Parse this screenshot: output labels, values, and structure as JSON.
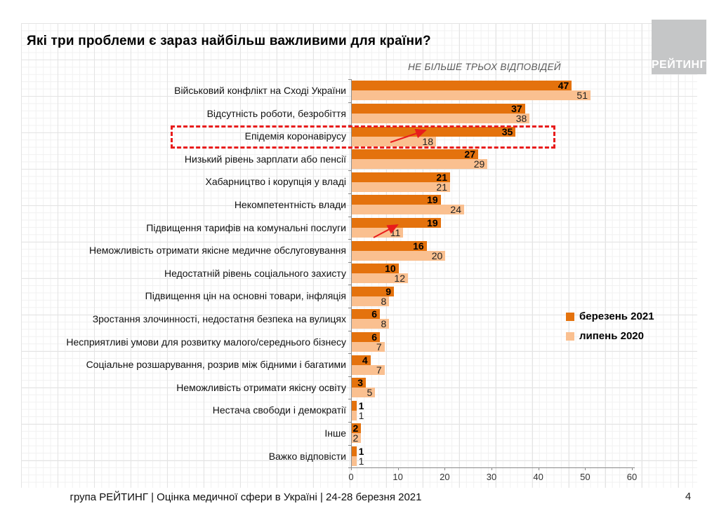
{
  "slide": {
    "title": "Які три проблеми є зараз найбільш важливими для країни?",
    "note": "НЕ БІЛЬШЕ ТРЬОХ ВІДПОВІДЕЙ",
    "logo_text": "РЕЙТИНГ",
    "footer": "група РЕЙТИНГ  |  Оцінка медичної сфери в Україні  | 24-28 березня 2021",
    "page_number": "4"
  },
  "colors": {
    "march_2021": "#e4720d",
    "july_2020": "#fac090",
    "highlight_red": "#e81c1c",
    "axis_gray": "#8a8a8a"
  },
  "chart_data": {
    "type": "bar",
    "orientation": "horizontal",
    "title": "Які три проблеми є зараз найбільш важливими для країни?",
    "subtitle": "НЕ БІЛЬШЕ ТРЬОХ ВІДПОВІДЕЙ",
    "xlim": [
      0,
      60
    ],
    "x_ticks": [
      0,
      10,
      20,
      30,
      40,
      50,
      60
    ],
    "grid": false,
    "legend_position": "right-middle",
    "categories": [
      "Військовий конфлікт на Сході України",
      "Відсутність роботи, безробіття",
      "Епідемія коронавірусу",
      "Низький рівень зарплати або пенсії",
      "Хабарництво і корупція у владі",
      "Некомпетентність влади",
      "Підвищення тарифів на комунальні послуги",
      "Неможливість отримати якісне медичне обслуговування",
      "Недостатній рівень соціального захисту",
      "Підвищення цін на основні товари, інфляція",
      "Зростання злочинності, недостатня безпека на вулицях",
      "Несприятливі умови для розвитку малого/середнього бізнесу",
      "Соціальне розшарування, розрив між бідними і багатими",
      "Неможливість отримати якісну освіту",
      "Нестача свободи і демократії",
      "Інше",
      "Важко відповісти"
    ],
    "series": [
      {
        "name": "березень 2021",
        "color": "#e4720d",
        "values": [
          47,
          37,
          35,
          27,
          21,
          19,
          19,
          16,
          10,
          9,
          6,
          6,
          4,
          3,
          1,
          2,
          1
        ]
      },
      {
        "name": "липень 2020",
        "color": "#fac090",
        "values": [
          51,
          38,
          18,
          29,
          21,
          24,
          11,
          20,
          12,
          8,
          8,
          7,
          7,
          5,
          1,
          2,
          1
        ]
      }
    ],
    "annotations": {
      "highlighted_category": "Епідемія коронавірусу",
      "highlight_style": "red dashed box around row",
      "arrow_marked_categories": [
        "Епідемія коронавірусу",
        "Підвищення тарифів на комунальні послуги"
      ]
    }
  },
  "legend": {
    "items": [
      {
        "label": "березень 2021",
        "color": "#e4720d"
      },
      {
        "label": "липень 2020",
        "color": "#fac090"
      }
    ]
  }
}
